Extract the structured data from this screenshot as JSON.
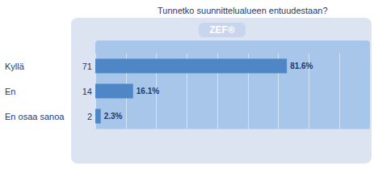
{
  "chart_data": {
    "type": "bar",
    "orientation": "horizontal",
    "title": "Tunnetko suunnittelualueen entuudestaan?",
    "annotations": [
      "ZEF®"
    ],
    "categories": [
      "Kyllä",
      "En",
      "En osaa sanoa"
    ],
    "counts": [
      71,
      14,
      2
    ],
    "values": [
      81.6,
      16.1,
      2.3
    ],
    "value_labels": [
      "81.6%",
      "16.1%",
      "2.3%"
    ],
    "color": "#4f86c6",
    "xlim": [
      0,
      117
    ],
    "xticks": [
      0,
      13,
      26,
      39,
      52,
      65,
      78,
      91,
      104,
      117
    ],
    "grid": true,
    "data_labels": true,
    "tick_labels": "y"
  }
}
